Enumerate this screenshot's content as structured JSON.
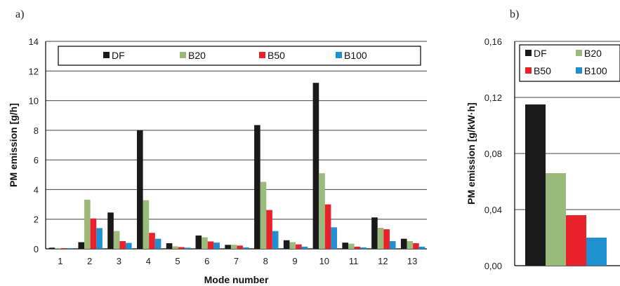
{
  "panels": {
    "a": "a)",
    "b": "b)"
  },
  "colors": {
    "DF": "#1a1a1a",
    "B20": "#9bbb7d",
    "B50": "#e8212b",
    "B100": "#1f8fcf"
  },
  "chart_data": [
    {
      "type": "bar",
      "panel": "a)",
      "xlabel": "Mode number",
      "ylabel": "PM emission [g/h]",
      "ylim": [
        0,
        14
      ],
      "yticks": [
        "0",
        "2",
        "4",
        "6",
        "8",
        "10",
        "12",
        "14"
      ],
      "grid": "horizontal",
      "legend_position": "top",
      "categories": [
        "1",
        "2",
        "3",
        "4",
        "5",
        "6",
        "7",
        "8",
        "9",
        "10",
        "11",
        "12",
        "13"
      ],
      "series": [
        {
          "name": "DF",
          "values": [
            0.08,
            0.45,
            2.45,
            8.0,
            0.38,
            0.9,
            0.27,
            8.35,
            0.58,
            11.2,
            0.42,
            2.12,
            0.68
          ]
        },
        {
          "name": "B20",
          "values": [
            0.05,
            3.32,
            1.2,
            3.28,
            0.17,
            0.78,
            0.27,
            4.52,
            0.45,
            5.1,
            0.35,
            1.42,
            0.52
          ]
        },
        {
          "name": "B50",
          "values": [
            0.05,
            2.05,
            0.52,
            1.08,
            0.12,
            0.5,
            0.22,
            2.62,
            0.3,
            3.0,
            0.15,
            1.32,
            0.38
          ]
        },
        {
          "name": "B100",
          "values": [
            0.05,
            1.4,
            0.4,
            0.68,
            0.08,
            0.42,
            0.1,
            1.2,
            0.15,
            1.45,
            0.1,
            0.52,
            0.15
          ]
        }
      ]
    },
    {
      "type": "bar",
      "panel": "b)",
      "xlabel": "",
      "ylabel": "PM emission [g/kW·h]",
      "ylim": [
        0,
        0.16
      ],
      "yticks": [
        "0,00",
        "0,04",
        "0,08",
        "0,12",
        "0,16"
      ],
      "grid": "horizontal",
      "legend_position": "top",
      "categories": [
        ""
      ],
      "series": [
        {
          "name": "DF",
          "values": [
            0.115
          ]
        },
        {
          "name": "B20",
          "values": [
            0.066
          ]
        },
        {
          "name": "B50",
          "values": [
            0.036
          ]
        },
        {
          "name": "B100",
          "values": [
            0.02
          ]
        }
      ]
    }
  ]
}
